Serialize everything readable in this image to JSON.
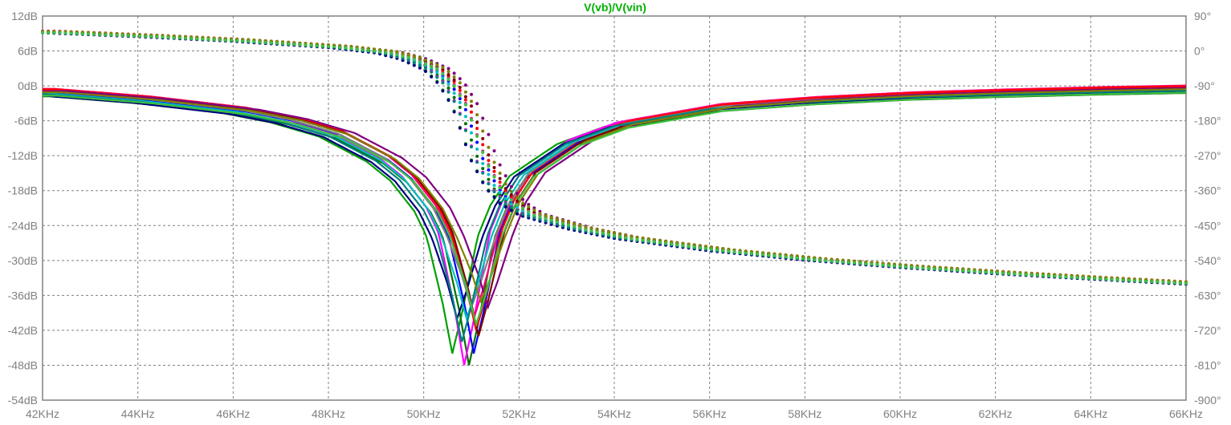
{
  "chart_data": {
    "type": "line",
    "title": "V(vb)/V(vin)",
    "title_color": "#00b000",
    "xlabel": "",
    "ylabel": "",
    "xlim": [
      42000,
      66000
    ],
    "ylim_left": [
      -54,
      12
    ],
    "ylim_right": [
      -900,
      90
    ],
    "grid": true,
    "x_tick_labels": [
      "42KHz",
      "44KHz",
      "46KHz",
      "48KHz",
      "50KHz",
      "52KHz",
      "54KHz",
      "56KHz",
      "58KHz",
      "60KHz",
      "62KHz",
      "64KHz",
      "66KHz"
    ],
    "x_tick_values": [
      42000,
      44000,
      46000,
      48000,
      50000,
      52000,
      54000,
      56000,
      58000,
      60000,
      62000,
      64000,
      66000
    ],
    "y_left_tick_labels": [
      "12dB",
      "6dB",
      "0dB",
      "-6dB",
      "-12dB",
      "-18dB",
      "-24dB",
      "-30dB",
      "-36dB",
      "-42dB",
      "-48dB",
      "-54dB"
    ],
    "y_left_tick_values": [
      12,
      6,
      0,
      -6,
      -12,
      -18,
      -24,
      -30,
      -36,
      -42,
      -48,
      -54
    ],
    "y_right_tick_labels": [
      "90°",
      "0°",
      "-90°",
      "-180°",
      "-270°",
      "-360°",
      "-450°",
      "-540°",
      "-630°",
      "-720°",
      "-810°",
      "-900°"
    ],
    "y_right_tick_values": [
      90,
      0,
      -90,
      -180,
      -270,
      -360,
      -450,
      -540,
      -630,
      -720,
      -810,
      -900
    ],
    "curve_shape": {
      "magnitude_x_khz": [
        42,
        44,
        46,
        47,
        48,
        49,
        49.5,
        50,
        50.3,
        50.6,
        50.8,
        51,
        51.3,
        51.6,
        52,
        53,
        54,
        56,
        58,
        60,
        62,
        64,
        66
      ],
      "magnitude_db_offset": [
        0,
        -1.3,
        -3.2,
        -4.8,
        -7.2,
        -11.5,
        -14.8,
        -20,
        -25,
        -31,
        -36,
        -32,
        -25,
        -19,
        -14,
        -8.5,
        -5.5,
        -2.6,
        -1.4,
        -0.6,
        -0.1,
        0.3,
        0.6
      ],
      "phase_x_khz": [
        42,
        44,
        46,
        48,
        49,
        49.5,
        50,
        50.3,
        50.6,
        50.8,
        51,
        51.3,
        51.6,
        52,
        53,
        54,
        56,
        58,
        60,
        62,
        64,
        66
      ],
      "phase_deg_offset": [
        0,
        -10,
        -22,
        -38,
        -52,
        -68,
        -95,
        -130,
        -190,
        -260,
        -330,
        -400,
        -440,
        -470,
        -505,
        -530,
        -562,
        -586,
        -605,
        -621,
        -635,
        -648
      ]
    },
    "series": [
      {
        "color": "#00a000",
        "mag_start": -1.5,
        "notch_khz": 50.6,
        "notch_depth": -46,
        "phase_start": 49,
        "phase_shift": 0
      },
      {
        "color": "#007000",
        "mag_start": -1.8,
        "notch_khz": 50.95,
        "notch_depth": -48,
        "phase_start": 48,
        "phase_shift": 0.15
      },
      {
        "color": "#ff00ff",
        "mag_start": -0.8,
        "notch_khz": 50.85,
        "notch_depth": -48,
        "phase_start": 50,
        "phase_shift": 0.1
      },
      {
        "color": "#ff0080",
        "mag_start": -0.5,
        "notch_khz": 51.05,
        "notch_depth": -40,
        "phase_start": 51,
        "phase_shift": 0.3
      },
      {
        "color": "#0000ff",
        "mag_start": -1.2,
        "notch_khz": 51.05,
        "notch_depth": -46,
        "phase_start": 49,
        "phase_shift": 0.25
      },
      {
        "color": "#000080",
        "mag_start": -1.6,
        "notch_khz": 50.7,
        "notch_depth": -40,
        "phase_start": 47,
        "phase_shift": 0
      },
      {
        "color": "#ff0000",
        "mag_start": -0.6,
        "notch_khz": 51.1,
        "notch_depth": -42,
        "phase_start": 50,
        "phase_shift": 0.35
      },
      {
        "color": "#800000",
        "mag_start": -0.9,
        "notch_khz": 51.15,
        "notch_depth": -43,
        "phase_start": 48,
        "phase_shift": 0.4
      },
      {
        "color": "#808080",
        "mag_start": -1.0,
        "notch_khz": 51.0,
        "notch_depth": -38,
        "phase_start": 49,
        "phase_shift": 0.3
      },
      {
        "color": "#800080",
        "mag_start": -0.9,
        "notch_khz": 51.35,
        "notch_depth": -38,
        "phase_start": 48,
        "phase_shift": 0.55
      },
      {
        "color": "#00c0c0",
        "mag_start": -1.3,
        "notch_khz": 50.9,
        "notch_depth": -40,
        "phase_start": 49,
        "phase_shift": 0.2
      },
      {
        "color": "#008080",
        "mag_start": -1.4,
        "notch_khz": 50.8,
        "notch_depth": -44,
        "phase_start": 48,
        "phase_shift": 0.1
      },
      {
        "color": "#808000",
        "mag_start": -1.1,
        "notch_khz": 51.2,
        "notch_depth": -37,
        "phase_start": 50,
        "phase_shift": 0.45
      },
      {
        "color": "#40c040",
        "mag_start": -1.7,
        "notch_khz": 51.1,
        "notch_depth": -41,
        "phase_start": 47,
        "phase_shift": 0.3
      }
    ]
  }
}
